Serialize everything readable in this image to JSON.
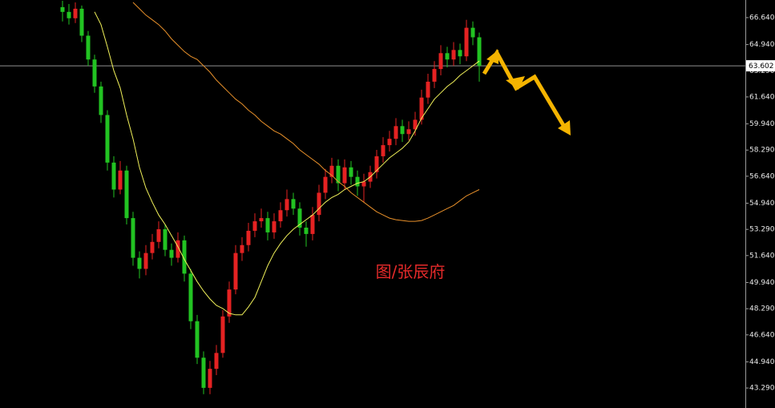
{
  "chart_data": {
    "type": "candlestick",
    "up_color": "#e52222",
    "down_color": "#22c322",
    "open": [
      67.3,
      67.0,
      66.6,
      67.2,
      65.5,
      64.0,
      62.3,
      60.5,
      57.5,
      55.8,
      57.0,
      54.0,
      51.5,
      50.8,
      51.8,
      52.5,
      53.3,
      52.0,
      51.5,
      52.6,
      50.5,
      47.5,
      45.2,
      43.3,
      44.5,
      45.5,
      47.8,
      49.5,
      51.8,
      52.3,
      53.2,
      53.8,
      54.0,
      53.1,
      53.8,
      54.5,
      55.2,
      54.6,
      53.4,
      53.0,
      54.2,
      55.6,
      56.6,
      57.3,
      56.2,
      57.2,
      56.6,
      56.0,
      56.3,
      56.9,
      57.9,
      58.6,
      59.0,
      59.8,
      59.3,
      59.6,
      60.2,
      61.6,
      62.6,
      63.4,
      64.4,
      64.0,
      64.6,
      64.2,
      66.0,
      65.4
    ],
    "high": [
      67.7,
      67.5,
      67.6,
      67.4,
      65.8,
      64.3,
      62.6,
      60.8,
      57.9,
      57.6,
      57.3,
      54.4,
      51.9,
      52.3,
      53.0,
      53.8,
      53.6,
      52.4,
      53.1,
      52.9,
      50.8,
      47.9,
      45.6,
      45.0,
      46.0,
      48.2,
      50.0,
      52.3,
      52.8,
      53.7,
      54.3,
      54.6,
      54.4,
      54.3,
      55.0,
      55.8,
      55.6,
      55.0,
      53.8,
      54.7,
      56.1,
      57.1,
      57.8,
      57.7,
      57.7,
      57.6,
      57.0,
      56.8,
      57.3,
      58.3,
      59.1,
      59.5,
      60.3,
      60.2,
      60.1,
      60.7,
      62.1,
      63.1,
      63.9,
      64.9,
      64.8,
      65.1,
      65.0,
      66.5,
      66.4,
      65.7
    ],
    "low": [
      66.4,
      66.2,
      66.3,
      65.1,
      63.6,
      61.9,
      60.0,
      57.0,
      55.3,
      55.5,
      53.6,
      51.0,
      50.2,
      50.4,
      51.4,
      52.1,
      51.6,
      51.0,
      51.2,
      50.0,
      47.0,
      44.8,
      42.9,
      42.9,
      44.1,
      45.2,
      47.4,
      49.2,
      51.3,
      51.9,
      52.8,
      53.4,
      52.6,
      52.7,
      53.4,
      54.1,
      54.2,
      52.9,
      52.2,
      52.6,
      53.8,
      55.2,
      56.2,
      55.7,
      55.8,
      56.1,
      55.4,
      55.0,
      55.9,
      56.5,
      57.5,
      58.2,
      58.6,
      58.8,
      58.9,
      59.2,
      59.9,
      61.2,
      62.2,
      63.0,
      63.5,
      63.6,
      63.7,
      63.9,
      64.9,
      62.6
    ],
    "close": [
      67.0,
      66.6,
      67.2,
      65.5,
      64.0,
      62.3,
      60.5,
      57.5,
      55.8,
      57.0,
      54.0,
      51.5,
      50.8,
      51.8,
      52.5,
      53.3,
      52.0,
      51.5,
      52.6,
      50.5,
      47.5,
      45.2,
      43.3,
      44.5,
      45.5,
      47.8,
      49.5,
      51.8,
      52.3,
      53.2,
      53.8,
      54.0,
      53.1,
      53.8,
      54.5,
      55.2,
      54.6,
      53.4,
      53.0,
      54.2,
      55.6,
      56.6,
      57.3,
      56.2,
      57.2,
      56.6,
      56.0,
      56.3,
      56.9,
      57.9,
      58.6,
      59.0,
      59.8,
      59.3,
      59.6,
      60.2,
      61.6,
      62.6,
      63.4,
      64.4,
      64.0,
      64.6,
      64.2,
      66.0,
      65.4,
      63.6
    ],
    "lines": [
      {
        "color": "#f2f25a",
        "values": [
          null,
          null,
          null,
          null,
          null,
          67.0,
          66.2,
          64.8,
          63.3,
          62.2,
          60.5,
          59.0,
          57.2,
          55.9,
          55.0,
          54.2,
          53.6,
          52.9,
          52.2,
          51.4,
          50.7,
          50.0,
          49.4,
          48.9,
          48.5,
          48.3,
          48.0,
          47.9,
          47.9,
          48.4,
          49.0,
          50.0,
          51.0,
          51.8,
          52.4,
          52.9,
          53.3,
          53.6,
          53.9,
          54.2,
          54.6,
          55.0,
          55.3,
          55.5,
          55.8,
          56.0,
          56.2,
          56.3,
          56.6,
          57.0,
          57.4,
          57.8,
          58.1,
          58.4,
          58.8,
          59.5,
          60.3,
          60.9,
          61.5,
          61.9,
          62.3,
          62.6,
          63.0,
          63.3,
          63.6,
          63.9
        ]
      },
      {
        "color": "#e8902a",
        "values": [
          null,
          null,
          null,
          null,
          null,
          null,
          null,
          null,
          null,
          null,
          null,
          67.6,
          67.2,
          66.8,
          66.5,
          66.2,
          65.8,
          65.3,
          64.9,
          64.5,
          64.2,
          64.0,
          63.6,
          63.2,
          62.7,
          62.3,
          61.9,
          61.5,
          61.2,
          60.8,
          60.5,
          60.1,
          59.8,
          59.5,
          59.3,
          59.0,
          58.7,
          58.3,
          58.0,
          57.7,
          57.4,
          57.0,
          56.7,
          56.3,
          56.0,
          55.6,
          55.3,
          55.0,
          54.7,
          54.4,
          54.2,
          54.0,
          53.9,
          53.85,
          53.8,
          53.8,
          53.85,
          54.0,
          54.2,
          54.4,
          54.6,
          54.8,
          55.1,
          55.4,
          55.6,
          55.8
        ]
      }
    ],
    "current_price": 63.602,
    "annotation": "图/张辰府",
    "ylim": [
      42.03,
      67.75
    ],
    "yticks": [
      {
        "value": 66.64,
        "label": "66.640"
      },
      {
        "value": 64.94,
        "label": "64.940"
      },
      {
        "value": 63.29,
        "label": "63.290"
      },
      {
        "value": 61.64,
        "label": "61.640"
      },
      {
        "value": 59.94,
        "label": "59.940"
      },
      {
        "value": 58.29,
        "label": "58.290"
      },
      {
        "value": 56.64,
        "label": "56.640"
      },
      {
        "value": 54.94,
        "label": "54.940"
      },
      {
        "value": 53.29,
        "label": "53.290"
      },
      {
        "value": 51.64,
        "label": "51.640"
      },
      {
        "value": 49.94,
        "label": "49.940"
      },
      {
        "value": 48.29,
        "label": "48.290"
      },
      {
        "value": 46.64,
        "label": "46.640"
      },
      {
        "value": 44.94,
        "label": "44.940"
      },
      {
        "value": 43.29,
        "label": "43.290"
      }
    ]
  }
}
